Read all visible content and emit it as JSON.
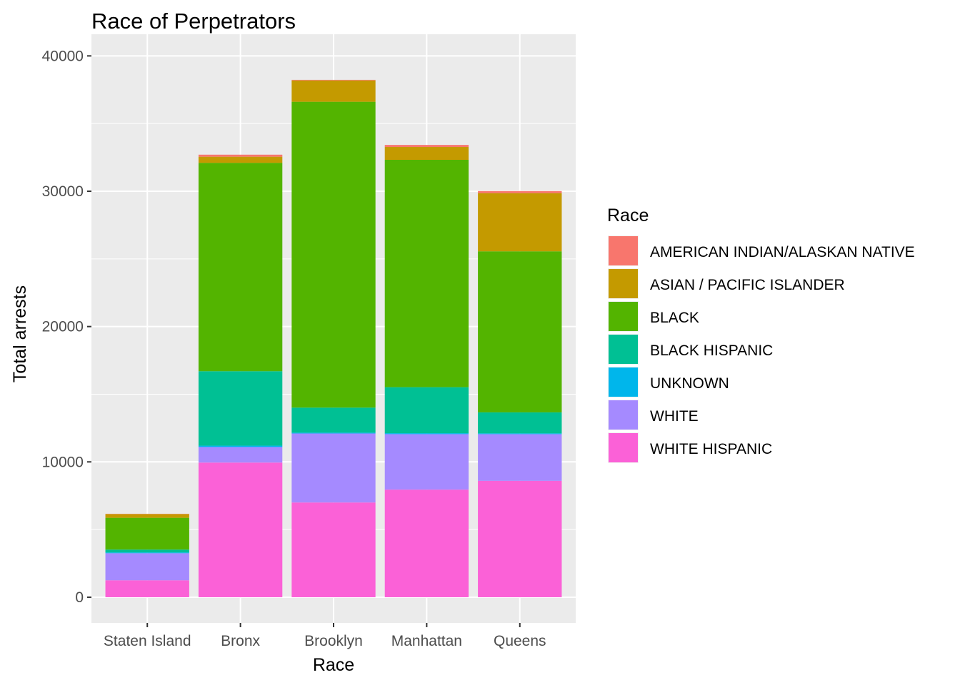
{
  "chart_data": {
    "type": "bar",
    "stacked": true,
    "title": "Race of Perpetrators",
    "xlabel": "Race",
    "ylabel": "Total arrests",
    "ylim": [
      -1900,
      41600
    ],
    "yticks": [
      0,
      10000,
      20000,
      30000,
      40000
    ],
    "yticklabels": [
      "0",
      "10000",
      "20000",
      "30000",
      "40000"
    ],
    "grid": true,
    "legend_position": "right",
    "legend_title": "Race",
    "categories": [
      "Staten Island",
      "Bronx",
      "Brooklyn",
      "Manhattan",
      "Queens"
    ],
    "series": [
      {
        "name": "AMERICAN INDIAN/ALASKAN NATIVE",
        "color": "#F8766D",
        "values": [
          20,
          150,
          40,
          150,
          150
        ]
      },
      {
        "name": "ASIAN / PACIFIC ISLANDER",
        "color": "#C49A00",
        "values": [
          270,
          450,
          1580,
          950,
          4300
        ]
      },
      {
        "name": "BLACK",
        "color": "#53B400",
        "values": [
          2350,
          15400,
          22600,
          16800,
          11900
        ]
      },
      {
        "name": "BLACK HISPANIC",
        "color": "#00C094",
        "values": [
          210,
          5500,
          1850,
          3400,
          1550
        ]
      },
      {
        "name": "UNKNOWN",
        "color": "#00B6EB",
        "values": [
          60,
          100,
          60,
          70,
          60
        ]
      },
      {
        "name": "WHITE",
        "color": "#A58AFF",
        "values": [
          2000,
          1150,
          5100,
          4100,
          3450
        ]
      },
      {
        "name": "WHITE HISPANIC",
        "color": "#FB61D7",
        "values": [
          1250,
          9950,
          7000,
          7950,
          8600
        ]
      }
    ]
  }
}
